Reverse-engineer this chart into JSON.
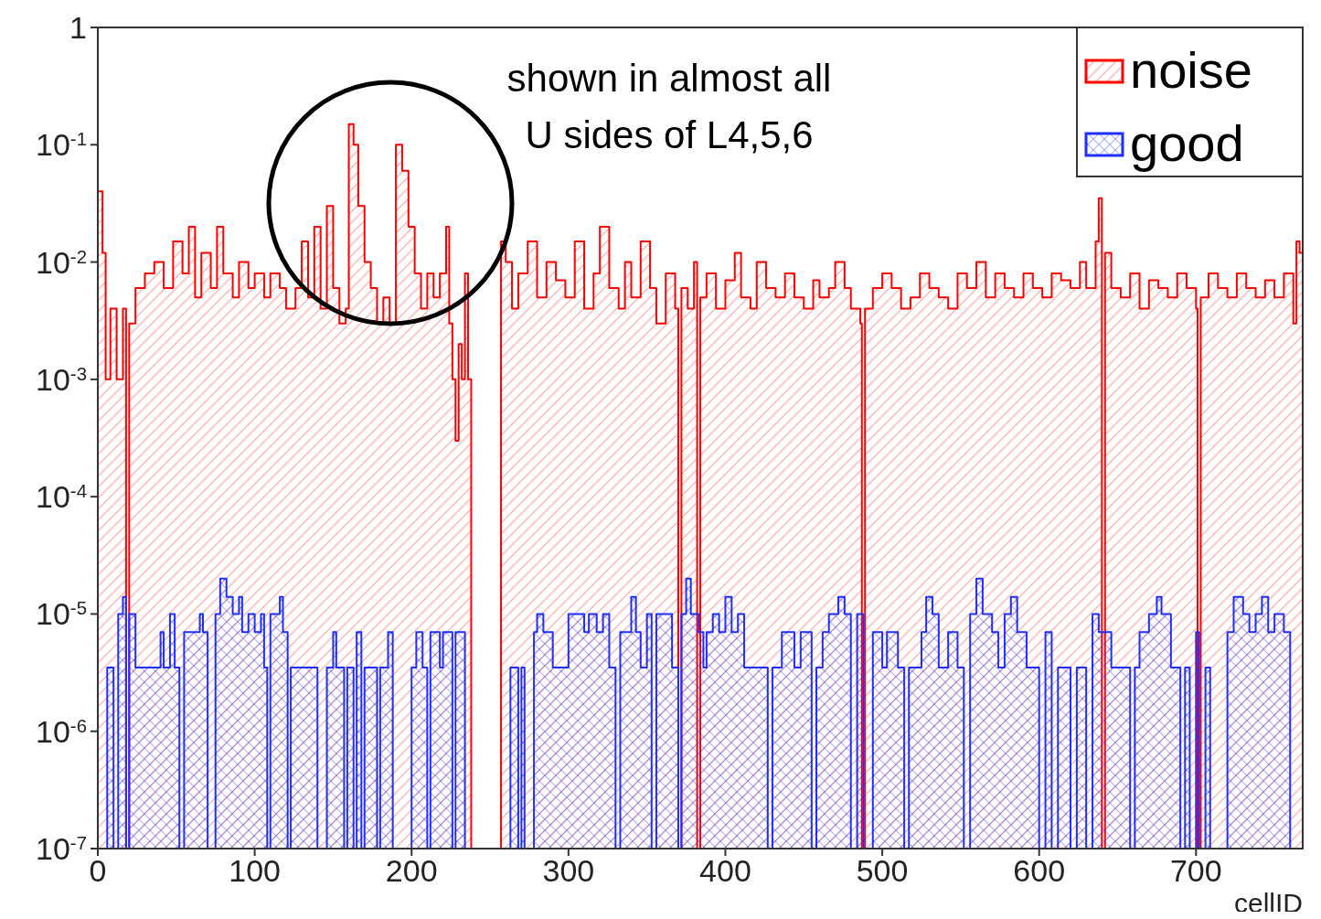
{
  "chart_data": {
    "type": "area",
    "xlabel": "cellID",
    "annotations": [
      "shown in almost all\nU sides of L4,5,6"
    ],
    "xlim": [
      0,
      768
    ],
    "xticks": [
      0,
      100,
      200,
      300,
      400,
      500,
      600,
      700
    ],
    "ylim": [
      1e-07,
      1
    ],
    "yticks": [
      {
        "value": 1e-07,
        "label": "10$^{-7}$"
      },
      {
        "value": 1e-06,
        "label": "10$^{-6}$"
      },
      {
        "value": 1e-05,
        "label": "10$^{-5}$"
      },
      {
        "value": 0.0001,
        "label": "10$^{-4}$"
      },
      {
        "value": 0.001,
        "label": "10$^{-3}$"
      },
      {
        "value": 0.01,
        "label": "10$^{-2}$"
      },
      {
        "value": 0.1,
        "label": "10$^{-1}$"
      },
      1
    ],
    "log": "y",
    "grid": false,
    "legend": "top right",
    "series": [
      {
        "name": "noise",
        "color": "#ff0000",
        "x": [
          0,
          3,
          5,
          8,
          12,
          16,
          18,
          20,
          24,
          30,
          36,
          42,
          48,
          54,
          58,
          62,
          66,
          72,
          76,
          80,
          86,
          90,
          96,
          100,
          106,
          110,
          116,
          120,
          126,
          130,
          134,
          138,
          142,
          146,
          150,
          154,
          158,
          160,
          163,
          166,
          170,
          174,
          178,
          182,
          186,
          190,
          194,
          198,
          202,
          206,
          210,
          214,
          218,
          222,
          224,
          226,
          228,
          230,
          232,
          234,
          236,
          238,
          257,
          260,
          264,
          268,
          274,
          280,
          286,
          292,
          298,
          304,
          310,
          316,
          320,
          326,
          332,
          336,
          340,
          346,
          352,
          356,
          362,
          368,
          370,
          372,
          376,
          380,
          382,
          384,
          388,
          394,
          400,
          406,
          410,
          416,
          420,
          426,
          432,
          438,
          444,
          450,
          456,
          460,
          466,
          470,
          476,
          480,
          486,
          487,
          489,
          494,
          500,
          506,
          512,
          518,
          524,
          530,
          536,
          542,
          548,
          554,
          560,
          566,
          572,
          578,
          584,
          590,
          596,
          602,
          608,
          614,
          620,
          626,
          630,
          636,
          638,
          640,
          642,
          646,
          652,
          658,
          664,
          670,
          676,
          682,
          688,
          694,
          700,
          701,
          703,
          708,
          714,
          720,
          726,
          732,
          738,
          744,
          750,
          756,
          762,
          764,
          766
        ],
        "values": [
          0.04,
          0.012,
          0.001,
          0.004,
          0.001,
          0.004,
          1e-07,
          0.003,
          0.006,
          0.008,
          0.01,
          0.006,
          0.015,
          0.008,
          0.02,
          0.005,
          0.012,
          0.006,
          0.02,
          0.008,
          0.005,
          0.01,
          0.006,
          0.008,
          0.005,
          0.008,
          0.006,
          0.004,
          0.006,
          0.015,
          0.005,
          0.02,
          0.004,
          0.03,
          0.006,
          0.003,
          0.004,
          0.15,
          0.1,
          0.03,
          0.01,
          0.006,
          0.003,
          0.005,
          0.003,
          0.1,
          0.06,
          0.02,
          0.008,
          0.004,
          0.008,
          0.005,
          0.008,
          0.02,
          0.003,
          0.001,
          0.0003,
          0.002,
          0.001,
          0.008,
          0.001,
          1e-07,
          0.015,
          0.01,
          0.004,
          0.008,
          0.015,
          0.005,
          0.01,
          0.007,
          0.005,
          0.015,
          0.004,
          0.008,
          0.02,
          0.006,
          0.004,
          0.01,
          0.005,
          0.015,
          0.006,
          0.003,
          0.008,
          0.004,
          1e-07,
          0.006,
          0.004,
          0.01,
          1e-07,
          0.005,
          0.008,
          0.004,
          0.007,
          0.012,
          0.005,
          0.004,
          0.01,
          0.006,
          0.005,
          0.008,
          0.005,
          0.004,
          0.007,
          0.005,
          0.006,
          0.01,
          0.006,
          0.004,
          0.003,
          1e-07,
          0.004,
          0.006,
          0.008,
          0.006,
          0.004,
          0.005,
          0.008,
          0.006,
          0.005,
          0.004,
          0.008,
          0.006,
          0.01,
          0.005,
          0.008,
          0.006,
          0.005,
          0.008,
          0.006,
          0.005,
          0.008,
          0.007,
          0.006,
          0.01,
          0.006,
          0.015,
          0.035,
          1e-07,
          0.012,
          0.006,
          0.005,
          0.008,
          0.004,
          0.007,
          0.006,
          0.005,
          0.008,
          0.006,
          0.004,
          1e-07,
          0.005,
          0.008,
          0.006,
          0.005,
          0.008,
          0.006,
          0.005,
          0.007,
          0.005,
          0.008,
          0.003,
          0.015,
          0.012
        ]
      },
      {
        "name": "good",
        "color": "#1f2fff",
        "x": [
          0,
          6,
          10,
          13,
          16,
          18,
          20,
          24,
          40,
          42,
          46,
          49,
          52,
          55,
          65,
          67,
          70,
          75,
          78,
          82,
          86,
          90,
          92,
          96,
          100,
          104,
          106,
          108,
          110,
          116,
          118,
          121,
          123,
          140,
          146,
          150,
          152,
          157,
          159,
          163,
          165,
          168,
          170,
          178,
          180,
          185,
          188,
          200,
          203,
          207,
          210,
          212,
          218,
          220,
          226,
          228,
          234,
          263,
          268,
          270,
          272,
          278,
          280,
          284,
          290,
          300,
          310,
          313,
          318,
          322,
          326,
          330,
          333,
          340,
          343,
          346,
          350,
          353,
          356,
          366,
          370,
          372,
          375,
          378,
          383,
          386,
          388,
          392,
          396,
          400,
          404,
          408,
          412,
          427,
          430,
          436,
          444,
          448,
          455,
          458,
          462,
          466,
          472,
          476,
          480,
          484,
          488,
          494,
          500,
          503,
          510,
          514,
          517,
          525,
          528,
          532,
          536,
          542,
          548,
          552,
          556,
          560,
          564,
          570,
          574,
          578,
          582,
          586,
          592,
          600,
          604,
          608,
          612,
          620,
          624,
          630,
          634,
          638,
          646,
          658,
          661,
          664,
          670,
          675,
          678,
          684,
          690,
          693,
          696,
          700,
          702,
          706,
          709,
          720,
          724,
          730,
          734,
          738,
          742,
          746,
          750,
          756,
          760,
          766
        ],
        "values": [
          1e-07,
          3.5e-06,
          1e-07,
          1e-05,
          1.4e-05,
          1e-07,
          1e-05,
          3.5e-06,
          7e-06,
          3.5e-06,
          1e-05,
          3.5e-06,
          1e-07,
          7e-06,
          1e-05,
          7e-06,
          1e-07,
          1e-05,
          2e-05,
          1.4e-05,
          1e-05,
          1.4e-05,
          7e-06,
          1e-05,
          7e-06,
          1e-05,
          3.5e-06,
          1e-07,
          1e-05,
          1.4e-05,
          7e-06,
          1e-07,
          3.5e-06,
          1e-07,
          3.5e-06,
          7e-06,
          3.5e-06,
          1e-07,
          3.5e-06,
          1e-07,
          7e-06,
          1e-07,
          3.5e-06,
          1e-07,
          3.5e-06,
          7e-06,
          1e-07,
          3.5e-06,
          7e-06,
          3.5e-06,
          1e-07,
          7e-06,
          3.5e-06,
          7e-06,
          1e-07,
          7e-06,
          1e-07,
          3.5e-06,
          1e-07,
          3.5e-06,
          1e-07,
          7e-06,
          1e-05,
          7e-06,
          3.5e-06,
          1e-05,
          7e-06,
          1e-05,
          7e-06,
          1e-05,
          3.5e-06,
          1e-07,
          7e-06,
          1.4e-05,
          7e-06,
          3.5e-06,
          1e-05,
          1e-07,
          1e-05,
          3.5e-06,
          1e-07,
          1e-05,
          2e-05,
          1e-05,
          7e-06,
          3.5e-06,
          7e-06,
          1e-05,
          7e-06,
          1.4e-05,
          7e-06,
          1e-05,
          3.5e-06,
          1e-07,
          3.5e-06,
          7e-06,
          3.5e-06,
          7e-06,
          1e-07,
          3.5e-06,
          7e-06,
          1e-05,
          1.4e-05,
          1e-05,
          1e-07,
          1e-05,
          1e-07,
          7e-06,
          3.5e-06,
          7e-06,
          3.5e-06,
          1e-07,
          3.5e-06,
          7e-06,
          1.4e-05,
          1e-05,
          3.5e-06,
          7e-06,
          3.5e-06,
          1e-07,
          1e-05,
          2e-05,
          1e-05,
          7e-06,
          3.5e-06,
          1e-05,
          1.4e-05,
          7e-06,
          3.5e-06,
          1e-07,
          7e-06,
          1e-07,
          3.5e-06,
          1e-07,
          3.5e-06,
          1e-07,
          1e-05,
          7e-06,
          3.5e-06,
          1e-07,
          3.5e-06,
          7e-06,
          1e-05,
          1.4e-05,
          1e-05,
          3.5e-06,
          1e-07,
          3.5e-06,
          1e-07,
          7e-06,
          1e-07,
          3.5e-06,
          1e-07,
          7e-06,
          1.4e-05,
          1e-05,
          7e-06,
          1e-05,
          1.4e-05,
          7e-06,
          1e-05,
          7e-06,
          1e-07,
          1e-07
        ]
      }
    ]
  }
}
